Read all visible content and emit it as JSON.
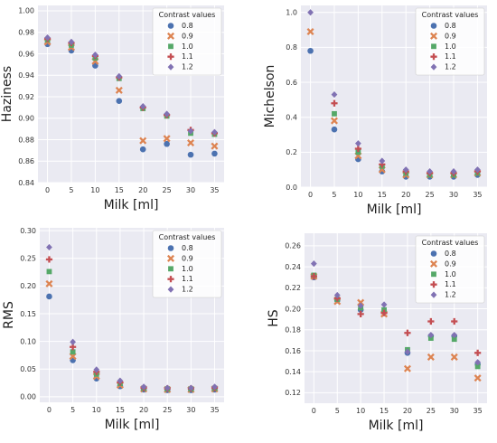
{
  "figure": {
    "background": "#ffffff",
    "plot_background": "#eaeaf2"
  },
  "legend": {
    "title": "Contrast values",
    "entries": [
      "0.8",
      "0.9",
      "1.0",
      "1.1",
      "1.2"
    ],
    "markers": [
      "circle",
      "x",
      "square",
      "plus",
      "diamond"
    ],
    "colors": [
      "#4c72b0",
      "#dd8452",
      "#55a868",
      "#c44e52",
      "#8172b3"
    ],
    "placement": "top-right"
  },
  "chart_data": [
    {
      "type": "scatter",
      "xlabel": "Milk [ml]",
      "ylabel": "Haziness",
      "x": [
        0,
        5,
        10,
        15,
        20,
        25,
        30,
        35
      ],
      "xticks": [
        "0",
        "5",
        "10",
        "15",
        "20",
        "25",
        "30",
        "35"
      ],
      "xlim": [
        -2,
        37
      ],
      "ylim": [
        0.84,
        1.005
      ],
      "yticks": [
        "0.84",
        "0.86",
        "0.88",
        "0.90",
        "0.92",
        "0.94",
        "0.96",
        "0.98",
        "1.00"
      ],
      "grid": true,
      "legend_placement": "top-right",
      "series": [
        {
          "name": "0.8",
          "values": [
            0.969,
            0.963,
            0.949,
            0.916,
            0.871,
            0.876,
            0.866,
            0.867
          ]
        },
        {
          "name": "0.9",
          "values": [
            0.971,
            0.966,
            0.953,
            0.926,
            0.879,
            0.881,
            0.877,
            0.874
          ]
        },
        {
          "name": "1.0",
          "values": [
            0.973,
            0.968,
            0.956,
            0.937,
            0.909,
            0.902,
            0.886,
            0.885
          ]
        },
        {
          "name": "1.1",
          "values": [
            0.974,
            0.97,
            0.958,
            0.938,
            0.91,
            0.903,
            0.889,
            0.886
          ]
        },
        {
          "name": "1.2",
          "values": [
            0.975,
            0.971,
            0.959,
            0.939,
            0.911,
            0.904,
            0.888,
            0.887
          ]
        }
      ]
    },
    {
      "type": "scatter",
      "xlabel": "Milk [ml]",
      "ylabel": "Michelson",
      "x": [
        0,
        5,
        10,
        15,
        20,
        25,
        30,
        35
      ],
      "xticks": [
        "0",
        "5",
        "10",
        "15",
        "20",
        "25",
        "30",
        "35"
      ],
      "xlim": [
        -2,
        37
      ],
      "ylim": [
        0,
        1.04
      ],
      "yticks": [
        "0.0",
        "0.2",
        "0.4",
        "0.6",
        "0.8",
        "1.0"
      ],
      "grid": true,
      "legend_placement": "top-right",
      "series": [
        {
          "name": "0.8",
          "values": [
            0.78,
            0.33,
            0.16,
            0.09,
            0.06,
            0.06,
            0.06,
            0.07
          ]
        },
        {
          "name": "0.9",
          "values": [
            0.89,
            0.38,
            0.18,
            0.1,
            0.07,
            0.07,
            0.07,
            0.08
          ]
        },
        {
          "name": "1.0",
          "values": [
            null,
            0.42,
            0.2,
            0.12,
            0.08,
            0.07,
            0.07,
            0.08
          ]
        },
        {
          "name": "1.1",
          "values": [
            null,
            0.48,
            0.22,
            0.13,
            0.09,
            0.08,
            0.08,
            0.09
          ]
        },
        {
          "name": "1.2",
          "values": [
            1.0,
            0.53,
            0.25,
            0.15,
            0.1,
            0.09,
            0.09,
            0.1
          ]
        }
      ]
    },
    {
      "type": "scatter",
      "xlabel": "Milk [ml]",
      "ylabel": "RMS",
      "x": [
        0,
        5,
        10,
        15,
        20,
        25,
        30,
        35
      ],
      "xticks": [
        "0",
        "5",
        "10",
        "15",
        "20",
        "25",
        "30",
        "35"
      ],
      "xlim": [
        -2,
        37
      ],
      "ylim": [
        -0.01,
        0.305
      ],
      "yticks": [
        "0.00",
        "0.05",
        "0.10",
        "0.15",
        "0.20",
        "0.25",
        "0.30"
      ],
      "grid": true,
      "legend_placement": "top-right",
      "series": [
        {
          "name": "0.8",
          "values": [
            0.181,
            0.066,
            0.033,
            0.019,
            0.013,
            0.012,
            0.012,
            0.013
          ]
        },
        {
          "name": "0.9",
          "values": [
            0.204,
            0.073,
            0.037,
            0.021,
            0.014,
            0.013,
            0.013,
            0.014
          ]
        },
        {
          "name": "1.0",
          "values": [
            0.226,
            0.081,
            0.041,
            0.024,
            0.015,
            0.014,
            0.014,
            0.015
          ]
        },
        {
          "name": "1.1",
          "values": [
            0.248,
            0.09,
            0.045,
            0.026,
            0.016,
            0.015,
            0.015,
            0.016
          ]
        },
        {
          "name": "1.2",
          "values": [
            0.27,
            0.099,
            0.049,
            0.029,
            0.018,
            0.016,
            0.016,
            0.018
          ]
        }
      ]
    },
    {
      "type": "scatter",
      "xlabel": "Milk [ml]",
      "ylabel": "HS",
      "x": [
        0,
        5,
        10,
        15,
        20,
        25,
        30,
        35
      ],
      "xticks": [
        "0",
        "5",
        "10",
        "15",
        "20",
        "25",
        "30",
        "35"
      ],
      "xlim": [
        -2,
        37
      ],
      "ylim": [
        0.11,
        0.272
      ],
      "yticks": [
        "0.12",
        "0.14",
        "0.16",
        "0.18",
        "0.20",
        "0.22",
        "0.24",
        "0.26"
      ],
      "grid": true,
      "legend_placement": "top-right",
      "series": [
        {
          "name": "0.8",
          "values": [
            0.23,
            0.208,
            0.199,
            0.197,
            0.158,
            0.174,
            0.174,
            0.147
          ]
        },
        {
          "name": "0.9",
          "values": [
            0.231,
            0.207,
            0.206,
            0.195,
            0.143,
            0.154,
            0.154,
            0.134
          ]
        },
        {
          "name": "1.0",
          "values": [
            0.232,
            0.209,
            0.201,
            0.199,
            0.161,
            0.172,
            0.171,
            0.145
          ]
        },
        {
          "name": "1.1",
          "values": [
            0.231,
            0.21,
            0.195,
            0.196,
            0.177,
            0.188,
            0.188,
            0.158
          ]
        },
        {
          "name": "1.2",
          "values": [
            0.243,
            0.213,
            0.203,
            0.204,
            0.159,
            0.175,
            0.175,
            0.149
          ]
        }
      ]
    }
  ]
}
